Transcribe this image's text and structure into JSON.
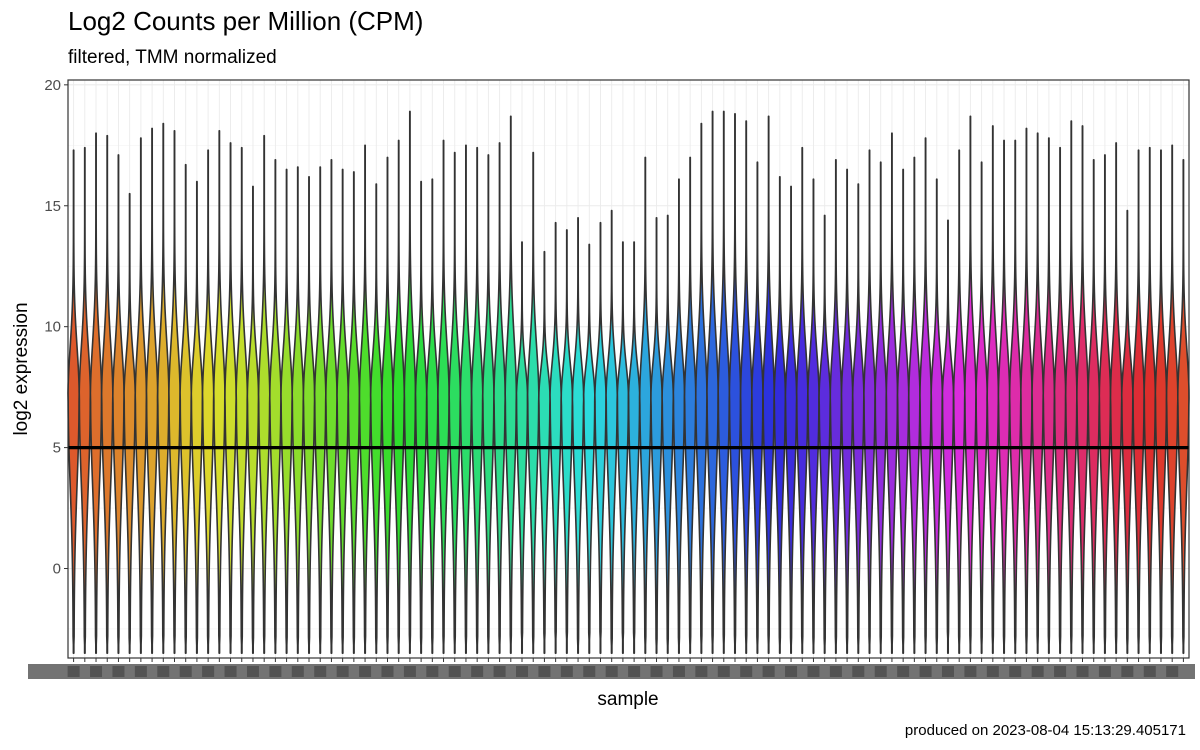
{
  "chart_data": {
    "type": "violin",
    "title": "Log2 Counts per Million (CPM)",
    "subtitle": "filtered, TMM normalized",
    "xlabel": "sample",
    "ylabel": "log2 expression",
    "caption": "produced on 2023-08-04 15:13:29.405171",
    "ylim": [
      -3.7,
      20.2
    ],
    "yticks": [
      0,
      5,
      10,
      15,
      20
    ],
    "grid": true,
    "theme": "bw",
    "n_samples": 100,
    "x_tick_labels_note": "100 sample labels overlap and are illegible",
    "samples": {
      "max": [
        17.3,
        17.4,
        18.0,
        17.9,
        17.1,
        15.5,
        17.8,
        18.2,
        18.4,
        18.1,
        16.7,
        16.0,
        17.3,
        18.1,
        17.6,
        17.4,
        15.8,
        17.9,
        16.9,
        16.5,
        16.6,
        16.2,
        16.6,
        16.9,
        16.5,
        16.4,
        17.5,
        15.9,
        17.0,
        17.7,
        18.9,
        16.0,
        16.1,
        17.7,
        17.2,
        17.5,
        17.4,
        17.1,
        17.6,
        18.7,
        13.5,
        17.2,
        13.1,
        14.3,
        14.0,
        14.5,
        13.4,
        14.3,
        14.8,
        13.5,
        13.5,
        17.0,
        14.5,
        14.6,
        16.1,
        17.0,
        18.4,
        18.9,
        18.9,
        18.8,
        18.5,
        16.8,
        18.7,
        16.2,
        15.8,
        17.4,
        16.1,
        14.6,
        16.9,
        16.5,
        15.9,
        17.3,
        16.8,
        18.0,
        16.5,
        17.0,
        17.8,
        16.1,
        14.4,
        17.3,
        18.7,
        16.8,
        18.3,
        17.7,
        17.7,
        18.2,
        18.0,
        17.8,
        17.4,
        18.5,
        18.3,
        16.9,
        17.1,
        17.6,
        14.8,
        17.3,
        17.4,
        17.3,
        17.5,
        16.9
      ]
    },
    "min_approx": -3.5,
    "median_approx": 5.0,
    "mode_approx": 7.0,
    "colors": {
      "violin_outline": "#333333",
      "median_line": "#000000",
      "panel_border": "#333333",
      "grid": "#ebebeb",
      "palette": "ggplot2 hue (100 samples)"
    }
  }
}
